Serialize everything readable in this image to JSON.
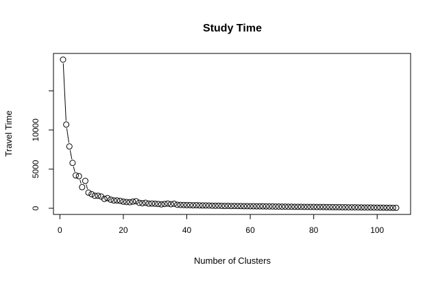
{
  "chart_data": {
    "type": "scatter",
    "title": "Study Time",
    "xlabel": "Number of Clusters",
    "ylabel": "Travel Time",
    "xlim": [
      1,
      106
    ],
    "ylim": [
      0,
      19000
    ],
    "x_ticks": [
      0,
      20,
      40,
      60,
      80,
      100
    ],
    "y_ticks": [
      0,
      5000,
      10000,
      15000
    ],
    "y_tick_labels": [
      "0",
      "5000",
      "10000",
      ""
    ],
    "style": "points-with-connecting-lines",
    "grid": false,
    "legend": "none",
    "series": [
      {
        "x": [
          1,
          2,
          3,
          4,
          5,
          6,
          7,
          8,
          9,
          10,
          11,
          12,
          13,
          14,
          15,
          16,
          17,
          18,
          19,
          20,
          21,
          22,
          23,
          24,
          25,
          26,
          27,
          28,
          29,
          30,
          31,
          32,
          33,
          34,
          35,
          36,
          37,
          38,
          39,
          40,
          41,
          42,
          43,
          44,
          45,
          46,
          47,
          48,
          49,
          50,
          51,
          52,
          53,
          54,
          55,
          56,
          57,
          58,
          59,
          60,
          61,
          62,
          63,
          64,
          65,
          66,
          67,
          68,
          69,
          70,
          71,
          72,
          73,
          74,
          75,
          76,
          77,
          78,
          79,
          80,
          81,
          82,
          83,
          84,
          85,
          86,
          87,
          88,
          89,
          90,
          91,
          92,
          93,
          94,
          95,
          96,
          97,
          98,
          99,
          100,
          101,
          102,
          103,
          104,
          105,
          106
        ],
        "y": [
          19000,
          10700,
          7900,
          5800,
          4200,
          4100,
          2700,
          3500,
          2000,
          1800,
          1600,
          1600,
          1500,
          1200,
          1300,
          1100,
          1000,
          1000,
          950,
          850,
          800,
          780,
          850,
          900,
          700,
          650,
          700,
          600,
          600,
          580,
          550,
          500,
          550,
          600,
          520,
          580,
          450,
          430,
          420,
          400,
          400,
          380,
          390,
          370,
          360,
          360,
          350,
          330,
          320,
          330,
          310,
          300,
          310,
          290,
          300,
          290,
          280,
          270,
          270,
          260,
          260,
          250,
          250,
          250,
          240,
          230,
          230,
          220,
          220,
          210,
          210,
          200,
          200,
          190,
          190,
          190,
          180,
          180,
          170,
          170,
          160,
          160,
          160,
          150,
          150,
          140,
          140,
          140,
          130,
          130,
          120,
          120,
          120,
          110,
          110,
          100,
          100,
          100,
          90,
          90,
          80,
          80,
          70,
          70,
          60,
          60
        ]
      }
    ]
  }
}
